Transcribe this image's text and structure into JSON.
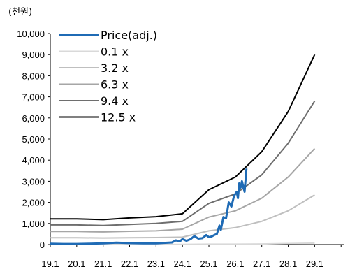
{
  "chart_data": {
    "type": "line",
    "unit_label": "(천원)",
    "x_ticks": [
      "19.1",
      "20.1",
      "21.1",
      "22.1",
      "23.1",
      "24.1",
      "25.1",
      "26.1",
      "27.1",
      "28.1",
      "29.1"
    ],
    "xlim": [
      2019.0,
      2030.1
    ],
    "ylim": [
      0,
      10000
    ],
    "y_ticks": [
      0,
      1000,
      2000,
      3000,
      4000,
      5000,
      6000,
      7000,
      8000,
      9000,
      10000
    ],
    "y_tick_labels": [
      "0",
      "1,000",
      "2,000",
      "3,000",
      "4,000",
      "5,000",
      "6,000",
      "7,000",
      "8,000",
      "9,000",
      "10,000"
    ],
    "grid": false,
    "legend_position": "top-left",
    "series": [
      {
        "name": "Price(adj.)",
        "color": "#1f6bb5",
        "width": 3,
        "points": [
          [
            2019.0,
            40
          ],
          [
            2019.5,
            30
          ],
          [
            2020.0,
            30
          ],
          [
            2020.5,
            40
          ],
          [
            2021.0,
            60
          ],
          [
            2021.5,
            90
          ],
          [
            2022.0,
            70
          ],
          [
            2022.5,
            60
          ],
          [
            2023.0,
            60
          ],
          [
            2023.3,
            80
          ],
          [
            2023.6,
            100
          ],
          [
            2023.75,
            200
          ],
          [
            2023.9,
            150
          ],
          [
            2024.0,
            260
          ],
          [
            2024.15,
            180
          ],
          [
            2024.3,
            250
          ],
          [
            2024.45,
            400
          ],
          [
            2024.6,
            280
          ],
          [
            2024.75,
            300
          ],
          [
            2024.9,
            450
          ],
          [
            2025.0,
            350
          ],
          [
            2025.1,
            380
          ],
          [
            2025.2,
            450
          ],
          [
            2025.3,
            500
          ],
          [
            2025.4,
            900
          ],
          [
            2025.45,
            700
          ],
          [
            2025.55,
            1300
          ],
          [
            2025.65,
            1250
          ],
          [
            2025.75,
            2000
          ],
          [
            2025.85,
            1800
          ],
          [
            2025.95,
            2300
          ],
          [
            2026.05,
            2500
          ],
          [
            2026.1,
            2200
          ],
          [
            2026.15,
            2900
          ],
          [
            2026.2,
            2700
          ],
          [
            2026.25,
            3000
          ],
          [
            2026.35,
            2500
          ],
          [
            2026.42,
            3600
          ]
        ]
      },
      {
        "name": "0.1 x",
        "color": "#d9d9d9",
        "width": 2,
        "points": [
          [
            2019.0,
            10
          ],
          [
            2020.0,
            10
          ],
          [
            2021.0,
            10
          ],
          [
            2022.0,
            10
          ],
          [
            2023.0,
            10
          ],
          [
            2024.0,
            10
          ],
          [
            2025.0,
            20
          ],
          [
            2026.0,
            20
          ],
          [
            2027.0,
            30
          ],
          [
            2028.0,
            50
          ],
          [
            2029.0,
            70
          ]
        ]
      },
      {
        "name": "3.2 x",
        "color": "#bfbfbf",
        "width": 2,
        "points": [
          [
            2019.0,
            320
          ],
          [
            2020.0,
            320
          ],
          [
            2021.0,
            310
          ],
          [
            2022.0,
            320
          ],
          [
            2023.0,
            330
          ],
          [
            2024.0,
            350
          ],
          [
            2025.0,
            650
          ],
          [
            2026.0,
            800
          ],
          [
            2027.0,
            1100
          ],
          [
            2028.0,
            1600
          ],
          [
            2029.0,
            2350
          ]
        ]
      },
      {
        "name": "6.3 x",
        "color": "#a6a6a6",
        "width": 2,
        "points": [
          [
            2019.0,
            620
          ],
          [
            2020.0,
            620
          ],
          [
            2021.0,
            600
          ],
          [
            2022.0,
            630
          ],
          [
            2023.0,
            650
          ],
          [
            2024.0,
            730
          ],
          [
            2025.0,
            1300
          ],
          [
            2026.0,
            1600
          ],
          [
            2027.0,
            2200
          ],
          [
            2028.0,
            3200
          ],
          [
            2029.0,
            4550
          ]
        ]
      },
      {
        "name": "9.4 x",
        "color": "#6e6e6e",
        "width": 2,
        "points": [
          [
            2019.0,
            930
          ],
          [
            2020.0,
            930
          ],
          [
            2021.0,
            900
          ],
          [
            2022.0,
            950
          ],
          [
            2023.0,
            1000
          ],
          [
            2024.0,
            1100
          ],
          [
            2025.0,
            1950
          ],
          [
            2026.0,
            2400
          ],
          [
            2027.0,
            3300
          ],
          [
            2028.0,
            4800
          ],
          [
            2029.0,
            6800
          ]
        ]
      },
      {
        "name": "12.5 x",
        "color": "#000000",
        "width": 2,
        "points": [
          [
            2019.0,
            1220
          ],
          [
            2020.0,
            1220
          ],
          [
            2021.0,
            1180
          ],
          [
            2022.0,
            1260
          ],
          [
            2023.0,
            1320
          ],
          [
            2024.0,
            1460
          ],
          [
            2025.0,
            2600
          ],
          [
            2026.0,
            3200
          ],
          [
            2027.0,
            4400
          ],
          [
            2028.0,
            6300
          ],
          [
            2029.0,
            9000
          ]
        ]
      }
    ]
  }
}
